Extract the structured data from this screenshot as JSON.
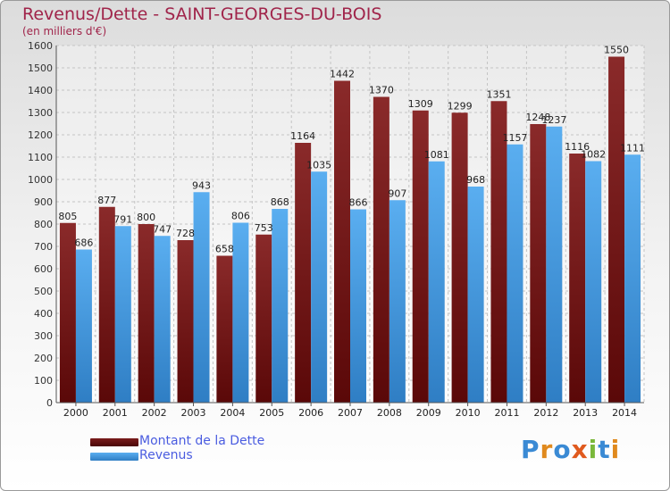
{
  "chart_data": {
    "type": "bar",
    "title": "Revenus/Dette - SAINT-GEORGES-DU-BOIS",
    "subtitle": "(en milliers d'€)",
    "categories": [
      "2000",
      "2001",
      "2002",
      "2003",
      "2004",
      "2005",
      "2006",
      "2007",
      "2008",
      "2009",
      "2010",
      "2011",
      "2012",
      "2013",
      "2014"
    ],
    "series": [
      {
        "name": "Montant de la Dette",
        "color": "#7a1c1c",
        "values": [
          805,
          877,
          800,
          728,
          658,
          753,
          1164,
          1442,
          1370,
          1309,
          1299,
          1351,
          1248,
          1116,
          1550
        ]
      },
      {
        "name": "Revenus",
        "color": "#3e98dd",
        "values": [
          686,
          791,
          747,
          943,
          806,
          868,
          1035,
          866,
          907,
          1081,
          968,
          1157,
          1237,
          1082,
          1111
        ]
      }
    ],
    "ylim": [
      0,
      1600
    ],
    "yticks": [
      0,
      100,
      200,
      300,
      400,
      500,
      600,
      700,
      800,
      900,
      1000,
      1100,
      1200,
      1300,
      1400,
      1500,
      1600
    ],
    "grid": true,
    "legend_position": "bottom-left"
  },
  "logo": {
    "letters": [
      {
        "ch": "P",
        "color": "#3a8ad4"
      },
      {
        "ch": "r",
        "color": "#e08a1e"
      },
      {
        "ch": "o",
        "color": "#3a8ad4"
      },
      {
        "ch": "x",
        "color": "#e05a1e"
      },
      {
        "ch": "i",
        "color": "#7ab83a"
      },
      {
        "ch": "t",
        "color": "#3a8ad4"
      },
      {
        "ch": "i",
        "color": "#e08a1e"
      }
    ]
  }
}
